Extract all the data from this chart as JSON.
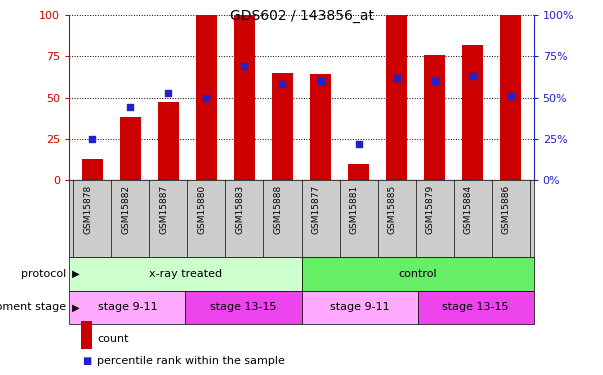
{
  "title": "GDS602 / 143856_at",
  "samples": [
    "GSM15878",
    "GSM15882",
    "GSM15887",
    "GSM15880",
    "GSM15883",
    "GSM15888",
    "GSM15877",
    "GSM15881",
    "GSM15885",
    "GSM15879",
    "GSM15884",
    "GSM15886"
  ],
  "count_values": [
    13,
    38,
    47,
    100,
    100,
    65,
    64,
    10,
    100,
    76,
    82,
    100
  ],
  "percentile_values": [
    25,
    44,
    53,
    50,
    69,
    58,
    60,
    22,
    62,
    60,
    63,
    51
  ],
  "bar_color": "#cc0000",
  "percentile_color": "#2222cc",
  "ylim": [
    0,
    100
  ],
  "yticks": [
    0,
    25,
    50,
    75,
    100
  ],
  "protocol_labels": [
    "x-ray treated",
    "control"
  ],
  "protocol_color_light": "#ccffcc",
  "protocol_color_dark": "#66ee66",
  "stage_labels": [
    "stage 9-11",
    "stage 13-15",
    "stage 9-11",
    "stage 13-15"
  ],
  "stage_color_light": "#ffaaff",
  "stage_color_dark": "#ee44ee",
  "legend_count_color": "#cc0000",
  "legend_percentile_color": "#2222cc",
  "ticklabel_bg": "#cccccc"
}
